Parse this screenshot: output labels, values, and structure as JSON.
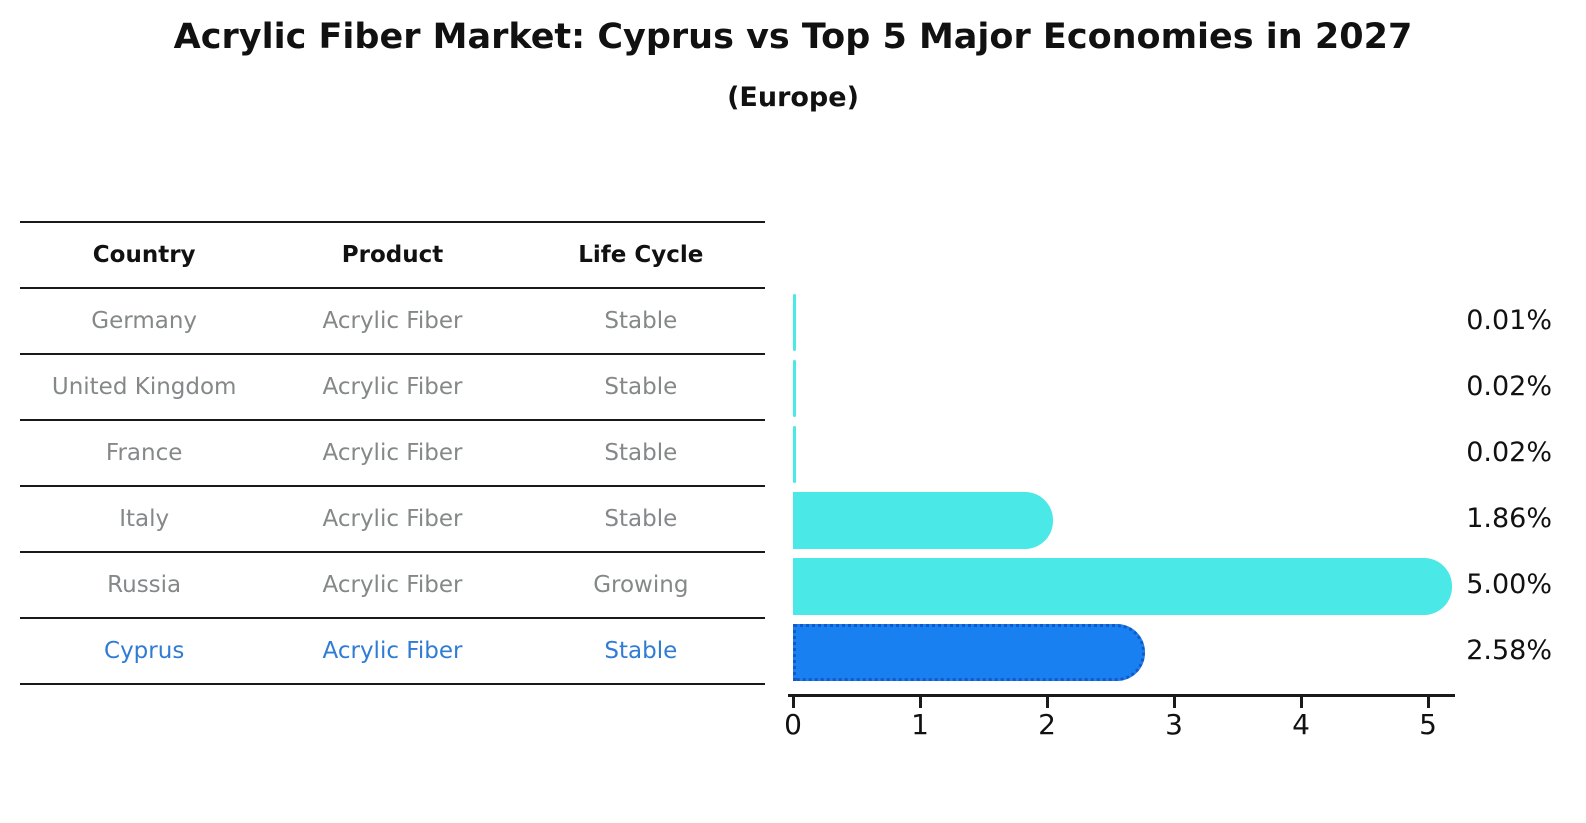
{
  "title": "Acrylic Fiber Market: Cyprus vs Top 5 Major Economies in 2027",
  "subtitle": "(Europe)",
  "colors": {
    "bar_default": "#4AE8E6",
    "bar_highlight": "#1880F0",
    "bar_highlight_border": "#1459C8",
    "highlight_text": "#307CD4",
    "row_text": "#858889",
    "line": "#1a1a1a",
    "ink": "#111111"
  },
  "table": {
    "headers": [
      "Country",
      "Product",
      "Life Cycle"
    ],
    "rows": [
      {
        "country": "Germany",
        "product": "Acrylic Fiber",
        "life_cycle": "Stable",
        "highlight": false
      },
      {
        "country": "United Kingdom",
        "product": "Acrylic Fiber",
        "life_cycle": "Stable",
        "highlight": false
      },
      {
        "country": "France",
        "product": "Acrylic Fiber",
        "life_cycle": "Stable",
        "highlight": false
      },
      {
        "country": "Italy",
        "product": "Acrylic Fiber",
        "life_cycle": "Stable",
        "highlight": false
      },
      {
        "country": "Russia",
        "product": "Acrylic Fiber",
        "life_cycle": "Growing",
        "highlight": false
      },
      {
        "country": "Cyprus",
        "product": "Acrylic Fiber",
        "life_cycle": "Stable",
        "highlight": true
      }
    ]
  },
  "chart_data": {
    "type": "bar",
    "orientation": "horizontal",
    "title": "Acrylic Fiber Market: Cyprus vs Top 5 Major Economies in 2027 (Europe)",
    "categories": [
      "Germany",
      "United Kingdom",
      "France",
      "Italy",
      "Russia",
      "Cyprus"
    ],
    "values": [
      0.01,
      0.02,
      0.02,
      1.86,
      5.0,
      2.58
    ],
    "value_labels": [
      "0.01%",
      "0.02%",
      "0.02%",
      "1.86%",
      "5.00%",
      "2.58%"
    ],
    "xlim": [
      0,
      5
    ],
    "x_ticks": [
      "0",
      "1",
      "2",
      "3",
      "4",
      "5"
    ],
    "highlight_index": 5,
    "grid": false,
    "legend": false
  }
}
